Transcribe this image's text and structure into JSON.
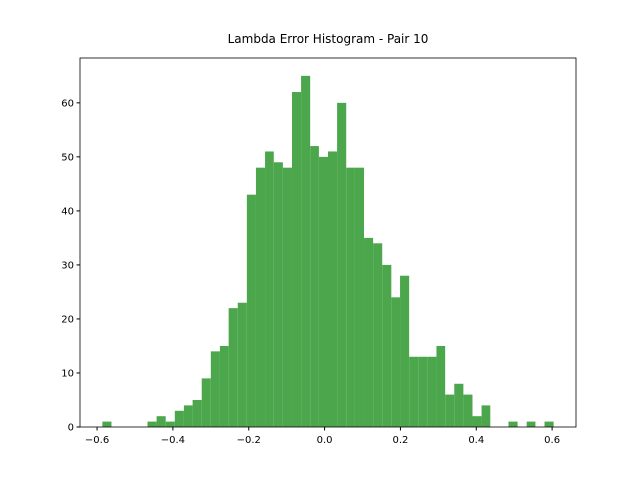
{
  "chart_data": {
    "type": "histogram",
    "title": "Lambda Error Histogram - Pair 10",
    "bins": [
      -0.586,
      -0.562,
      -0.538,
      -0.514,
      -0.49,
      -0.467,
      -0.443,
      -0.419,
      -0.395,
      -0.371,
      -0.348,
      -0.324,
      -0.3,
      -0.276,
      -0.253,
      -0.229,
      -0.205,
      -0.181,
      -0.157,
      -0.134,
      -0.11,
      -0.086,
      -0.062,
      -0.038,
      -0.015,
      0.009,
      0.033,
      0.057,
      0.08,
      0.104,
      0.128,
      0.152,
      0.176,
      0.199,
      0.223,
      0.247,
      0.271,
      0.295,
      0.318,
      0.342,
      0.366,
      0.39,
      0.414,
      0.437,
      0.461,
      0.485,
      0.509,
      0.533,
      0.556,
      0.58,
      0.604
    ],
    "values": [
      1,
      0,
      0,
      0,
      0,
      1,
      2,
      1,
      3,
      4,
      5,
      9,
      14,
      15,
      22,
      23,
      43,
      48,
      51,
      49,
      48,
      62,
      65,
      52,
      50,
      51,
      60,
      48,
      48,
      35,
      34,
      30,
      24,
      28,
      13,
      13,
      13,
      15,
      6,
      8,
      6,
      2,
      4,
      0,
      0,
      1,
      0,
      1,
      0,
      1
    ],
    "color": "#4ca64c",
    "xlim": [
      -0.645,
      0.663
    ],
    "ylim": [
      0,
      68.3
    ],
    "xticks": [
      {
        "value": -0.6,
        "label": "−0.6"
      },
      {
        "value": -0.4,
        "label": "−0.4"
      },
      {
        "value": -0.2,
        "label": "−0.2"
      },
      {
        "value": 0,
        "label": "0.0"
      },
      0.2,
      0.4,
      0.6
    ],
    "yticks": [
      0,
      10,
      20,
      30,
      40,
      50,
      60
    ]
  }
}
